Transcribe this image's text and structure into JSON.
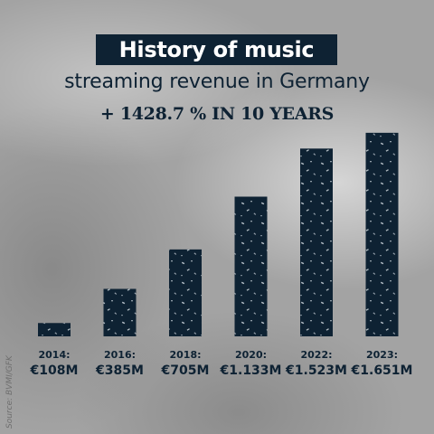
{
  "title": "History of music",
  "subtitle": "streaming revenue in Germany",
  "headline": "+ 1428.7 % IN 10 YEARS",
  "source": "Source: BVMI/GFK",
  "colors": {
    "bar": "#0e2233",
    "text": "#0e2233",
    "title_bg": "#0e2233"
  },
  "chart_data": {
    "type": "bar",
    "title": "History of music",
    "subtitle": "streaming revenue in Germany",
    "categories": [
      "2014:",
      "2016:",
      "2018:",
      "2020:",
      "2022:",
      "2023:"
    ],
    "values": [
      108,
      385,
      705,
      1133,
      1523,
      1651
    ],
    "value_labels": [
      "€108M",
      "€385M",
      "€705M",
      "€1.133M",
      "€1.523M",
      "€1.651M"
    ],
    "ylim": [
      0,
      1760
    ],
    "grid": false,
    "legend": "none"
  }
}
